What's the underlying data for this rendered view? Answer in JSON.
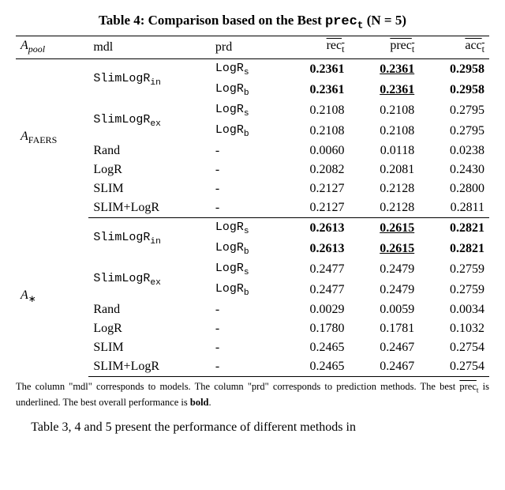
{
  "caption": {
    "prefix": "Table 4: Comparison based on the Best ",
    "code": "prec",
    "code_sub": "t",
    "suffix": " (N = 5)"
  },
  "headers": {
    "pool": "A",
    "pool_sub": "pool",
    "mdl": "mdl",
    "prd": "prd",
    "rec": "rec",
    "rec_sub": "t",
    "prec": "prec",
    "prec_sub": "t",
    "acc": "acc",
    "acc_sub": "t"
  },
  "sections": [
    {
      "pool_label": "A",
      "pool_sub": "FAERS",
      "rows": [
        {
          "mdl": "SlimLogR",
          "mdl_sub": "in",
          "prd": "LogR",
          "prd_sub": "s",
          "rec": "0.2361",
          "prec": "0.2361",
          "acc": "0.2958",
          "bold": true,
          "uline": true,
          "rowspan_mdl": 2
        },
        {
          "mdl": "",
          "mdl_sub": "",
          "prd": "LogR",
          "prd_sub": "b",
          "rec": "0.2361",
          "prec": "0.2361",
          "acc": "0.2958",
          "bold": true,
          "uline": true
        },
        {
          "mdl": "SlimLogR",
          "mdl_sub": "ex",
          "prd": "LogR",
          "prd_sub": "s",
          "rec": "0.2108",
          "prec": "0.2108",
          "acc": "0.2795",
          "rowspan_mdl": 2
        },
        {
          "mdl": "",
          "mdl_sub": "",
          "prd": "LogR",
          "prd_sub": "b",
          "rec": "0.2108",
          "prec": "0.2108",
          "acc": "0.2795"
        },
        {
          "mdl": "Rand",
          "mdl_sub": "",
          "prd": "-",
          "prd_sub": "",
          "rec": "0.0060",
          "prec": "0.0118",
          "acc": "0.0238",
          "plain_mdl": true
        },
        {
          "mdl": "LogR",
          "mdl_sub": "",
          "prd": "-",
          "prd_sub": "",
          "rec": "0.2082",
          "prec": "0.2081",
          "acc": "0.2430",
          "plain_mdl": true
        },
        {
          "mdl": "SLIM",
          "mdl_sub": "",
          "prd": "-",
          "prd_sub": "",
          "rec": "0.2127",
          "prec": "0.2128",
          "acc": "0.2800",
          "plain_mdl": true
        },
        {
          "mdl": "SLIM+LogR",
          "mdl_sub": "",
          "prd": "-",
          "prd_sub": "",
          "rec": "0.2127",
          "prec": "0.2128",
          "acc": "0.2811",
          "plain_mdl": true
        }
      ]
    },
    {
      "pool_label": "A",
      "pool_sub": "∗",
      "rows": [
        {
          "mdl": "SlimLogR",
          "mdl_sub": "in",
          "prd": "LogR",
          "prd_sub": "s",
          "rec": "0.2613",
          "prec": "0.2615",
          "acc": "0.2821",
          "bold": true,
          "uline": true,
          "rowspan_mdl": 2
        },
        {
          "mdl": "",
          "mdl_sub": "",
          "prd": "LogR",
          "prd_sub": "b",
          "rec": "0.2613",
          "prec": "0.2615",
          "acc": "0.2821",
          "bold": true,
          "uline": true
        },
        {
          "mdl": "SlimLogR",
          "mdl_sub": "ex",
          "prd": "LogR",
          "prd_sub": "s",
          "rec": "0.2477",
          "prec": "0.2479",
          "acc": "0.2759",
          "rowspan_mdl": 2
        },
        {
          "mdl": "",
          "mdl_sub": "",
          "prd": "LogR",
          "prd_sub": "b",
          "rec": "0.2477",
          "prec": "0.2479",
          "acc": "0.2759"
        },
        {
          "mdl": "Rand",
          "mdl_sub": "",
          "prd": "-",
          "prd_sub": "",
          "rec": "0.0029",
          "prec": "0.0059",
          "acc": "0.0034",
          "plain_mdl": true
        },
        {
          "mdl": "LogR",
          "mdl_sub": "",
          "prd": "-",
          "prd_sub": "",
          "rec": "0.1780",
          "prec": "0.1781",
          "acc": "0.1032",
          "plain_mdl": true
        },
        {
          "mdl": "SLIM",
          "mdl_sub": "",
          "prd": "-",
          "prd_sub": "",
          "rec": "0.2465",
          "prec": "0.2467",
          "acc": "0.2754",
          "plain_mdl": true
        },
        {
          "mdl": "SLIM+LogR",
          "mdl_sub": "",
          "prd": "-",
          "prd_sub": "",
          "rec": "0.2465",
          "prec": "0.2467",
          "acc": "0.2754",
          "plain_mdl": true
        }
      ]
    }
  ],
  "footnote": {
    "p1": "The column \"mdl\" corresponds to models. The column \"prd\" corresponds to prediction methods. The best ",
    "ov1": "prec",
    "ov1_sub": "t",
    "p2": " is underlined. The best overall performance is ",
    "boldword": "bold",
    "p3": "."
  },
  "bodytext": "Table 3, 4 and 5 present the performance of different methods in"
}
